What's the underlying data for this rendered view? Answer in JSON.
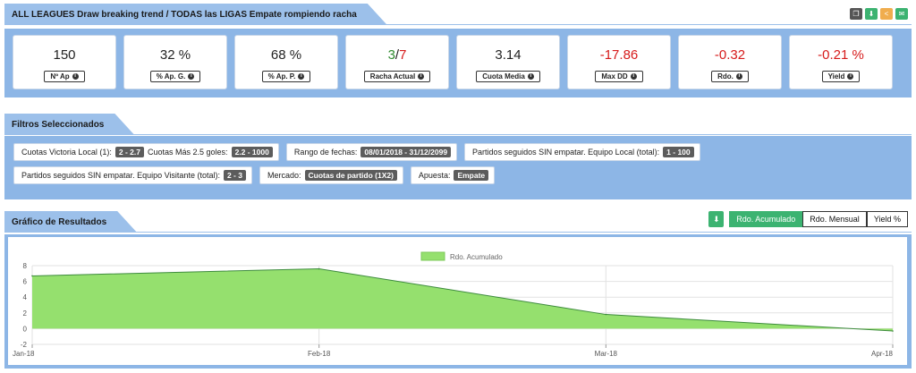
{
  "header": {
    "title": "ALL LEAGUES Draw breaking trend / TODAS las LIGAS Empate rompiendo racha",
    "actions": [
      {
        "icon": "copy-icon",
        "color": "#555555"
      },
      {
        "icon": "download-icon",
        "color": "#3cb371"
      },
      {
        "icon": "share-icon",
        "color": "#f0ad4e"
      },
      {
        "icon": "email-icon",
        "color": "#3cb371"
      }
    ]
  },
  "stats": [
    {
      "value": "150",
      "label": "Nº Ap"
    },
    {
      "value": "32 %",
      "label": "% Ap. G."
    },
    {
      "value": "68 %",
      "label": "% Ap. P."
    },
    {
      "value_ok": "3",
      "value_sep": "/",
      "value_bad": "7",
      "label": "Racha Actual"
    },
    {
      "value": "3.14",
      "label": "Cuota Media"
    },
    {
      "value": "-17.86",
      "label": "Max DD"
    },
    {
      "value": "-0.32",
      "label": "Rdo."
    },
    {
      "value": "-0.21 %",
      "label": "Yield"
    }
  ],
  "filters": {
    "title": "Filtros Seleccionados",
    "row1": [
      {
        "parts": [
          {
            "text": "Cuotas Victoria Local (1):",
            "tag": "2 - 2.7"
          },
          {
            "text": "Cuotas Más 2.5 goles:",
            "tag": "2.2 - 1000"
          }
        ]
      },
      {
        "parts": [
          {
            "text": "Rango de fechas:",
            "tag": "08/01/2018 - 31/12/2099"
          }
        ]
      },
      {
        "parts": [
          {
            "text": "Partidos seguidos SIN empatar. Equipo Local (total):",
            "tag": "1 - 100"
          }
        ]
      }
    ],
    "row2": [
      {
        "parts": [
          {
            "text": "Partidos seguidos SIN empatar. Equipo Visitante (total):",
            "tag": "2 - 3"
          }
        ]
      },
      {
        "parts": [
          {
            "text": "Mercado:",
            "tag": "Cuotas de partido (1X2)"
          }
        ]
      },
      {
        "parts": [
          {
            "text": "Apuesta:",
            "tag": "Empate"
          }
        ]
      }
    ]
  },
  "results": {
    "title": "Gráfico de Resultados",
    "tabs": [
      "Rdo. Acumulado",
      "Rdo. Mensual",
      "Yield %"
    ],
    "active_tab": 0
  },
  "chart_data": {
    "type": "area",
    "series": [
      {
        "name": "Rdo. Acumulado",
        "values": [
          6.7,
          7.6,
          1.8,
          -0.3
        ],
        "color": "#95e06e"
      }
    ],
    "categories": [
      "Jan-18",
      "Feb-18",
      "Mar-18",
      "Apr-18"
    ],
    "ylim": [
      -2,
      8
    ],
    "yticks": [
      -2,
      0,
      2,
      4,
      6,
      8
    ],
    "grid": true,
    "legend": "top-center"
  }
}
